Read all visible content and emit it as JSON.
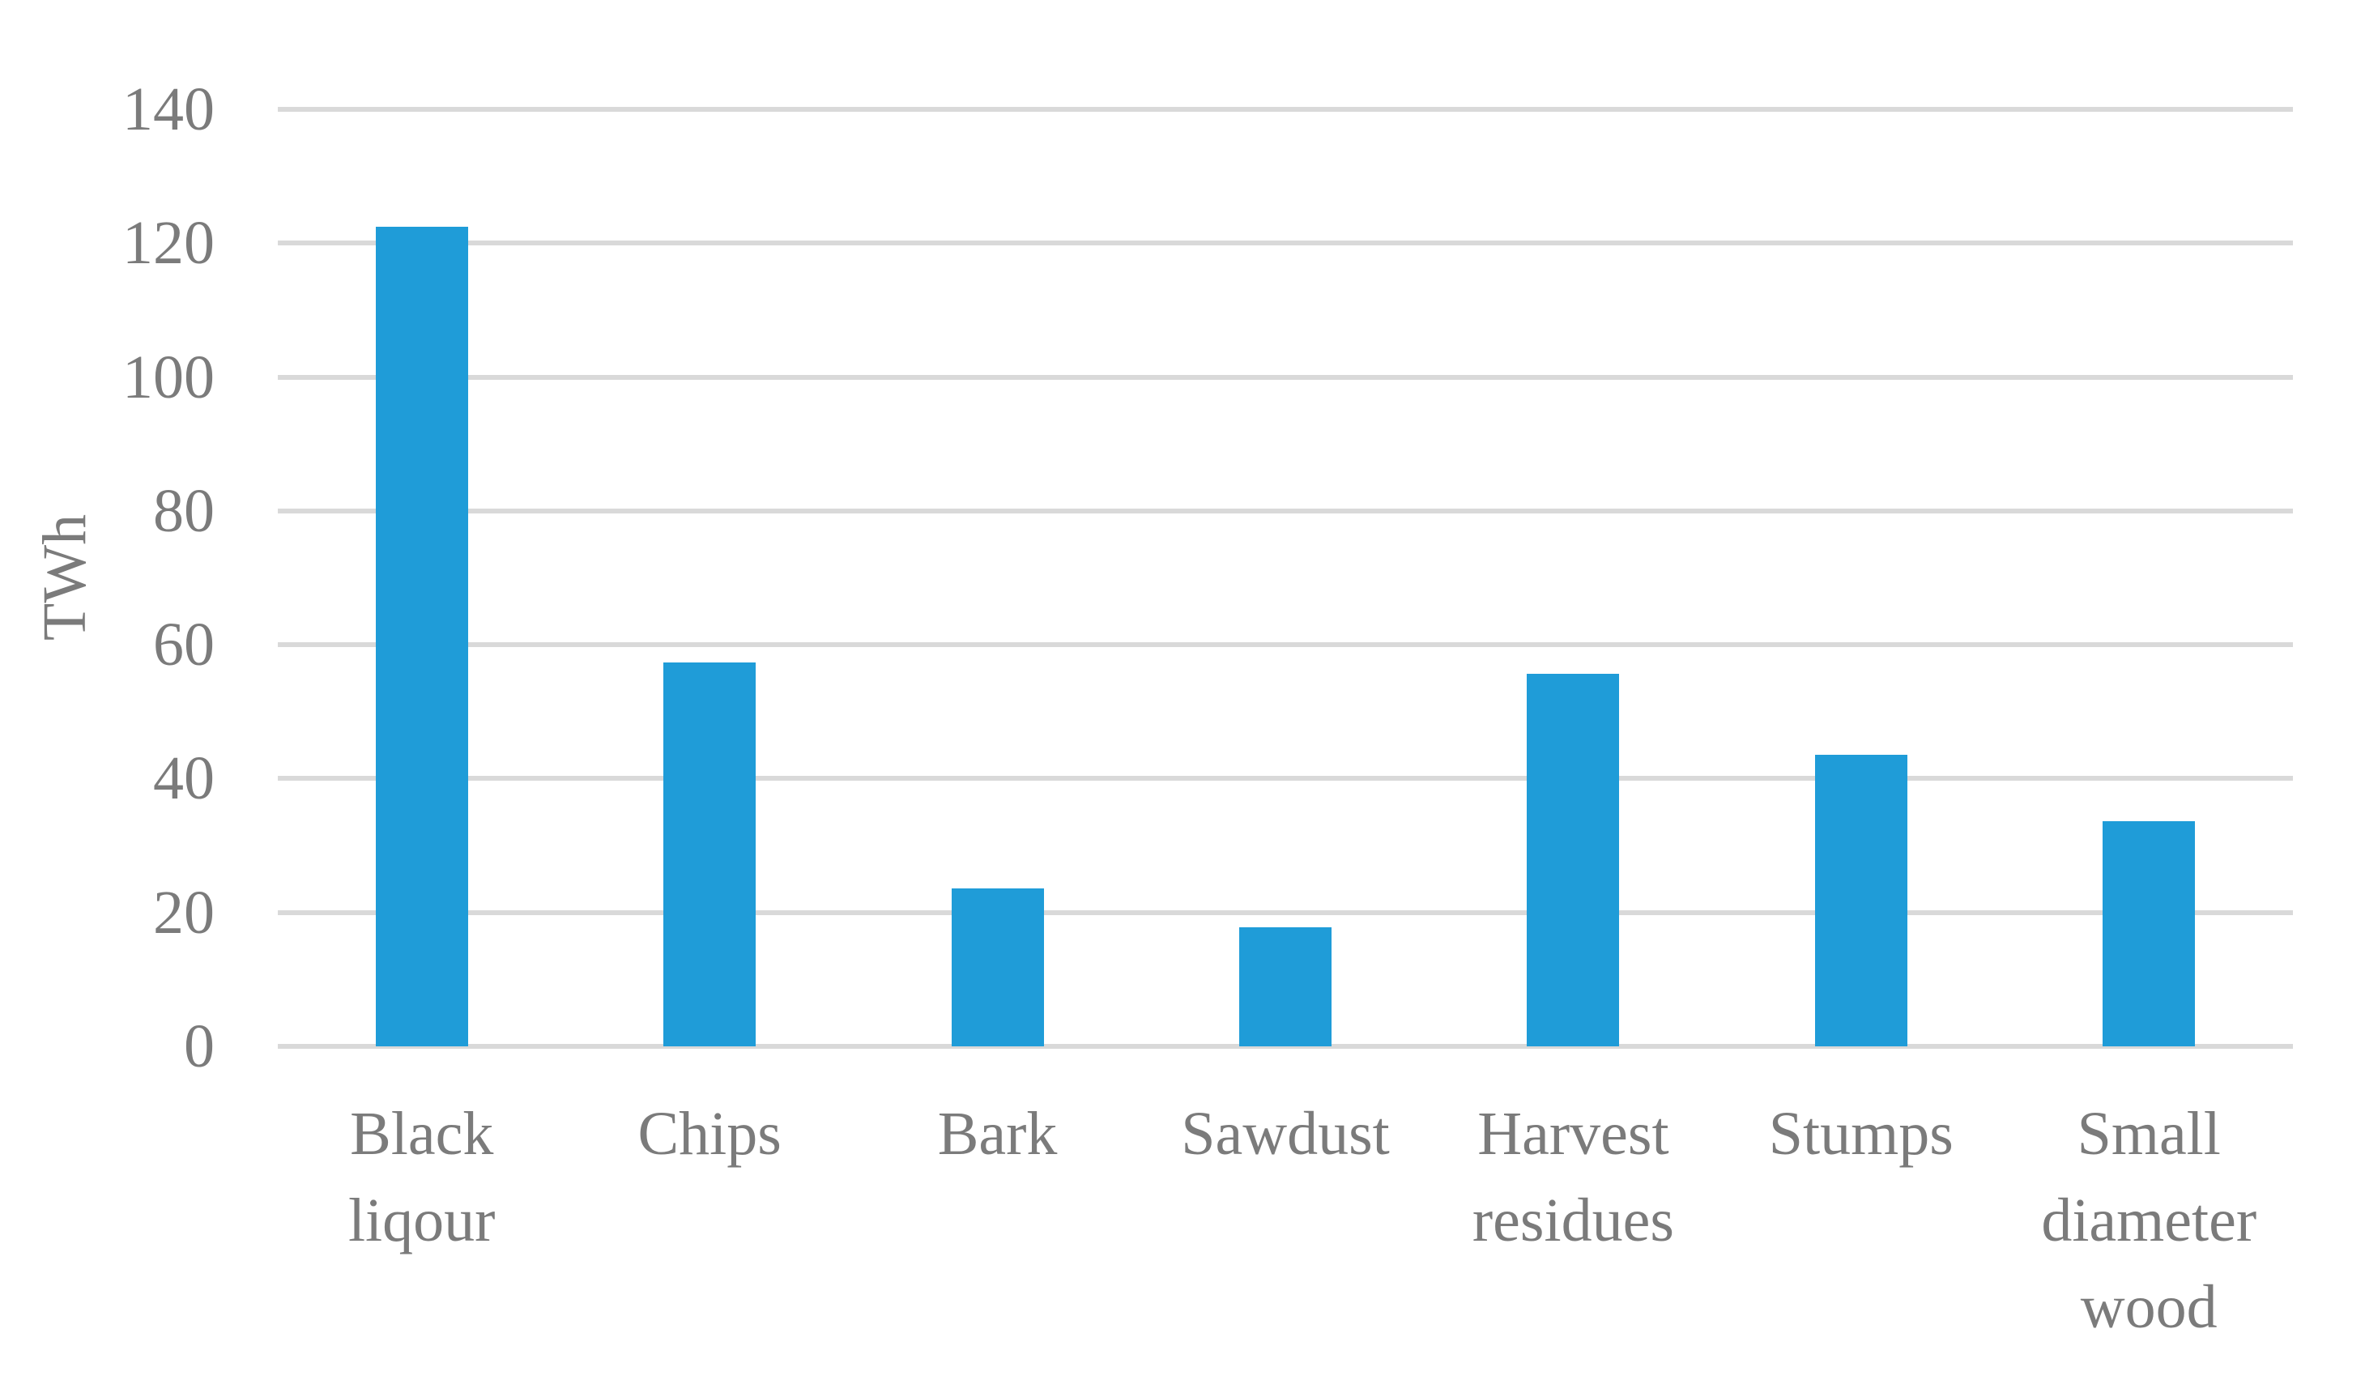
{
  "chart_data": {
    "type": "bar",
    "title": "",
    "xlabel": "",
    "ylabel": "TWh",
    "categories": [
      "Black liqour",
      "Chips",
      "Bark",
      "Sawdust",
      "Harvest residues",
      "Stumps",
      "Small diameter wood"
    ],
    "category_lines": [
      [
        "Black",
        "liqour"
      ],
      [
        "Chips"
      ],
      [
        "Bark"
      ],
      [
        "Sawdust"
      ],
      [
        "Harvest",
        "residues"
      ],
      [
        "Stumps"
      ],
      [
        "Small",
        "diameter",
        "wood"
      ]
    ],
    "values": [
      122.4,
      57.4,
      23.6,
      17.8,
      55.7,
      43.6,
      33.6
    ],
    "unit": "TWh",
    "ylim": [
      0,
      140
    ],
    "y_tick_step": 20,
    "y_ticks": [
      0,
      20,
      40,
      60,
      80,
      100,
      120,
      140
    ],
    "grid": true,
    "legend_position": "none",
    "bar_color": "#1f9cd8",
    "gridline_color": "#d9d9d9",
    "text_color": "#7b7b7b",
    "background_color": "#ffffff"
  }
}
